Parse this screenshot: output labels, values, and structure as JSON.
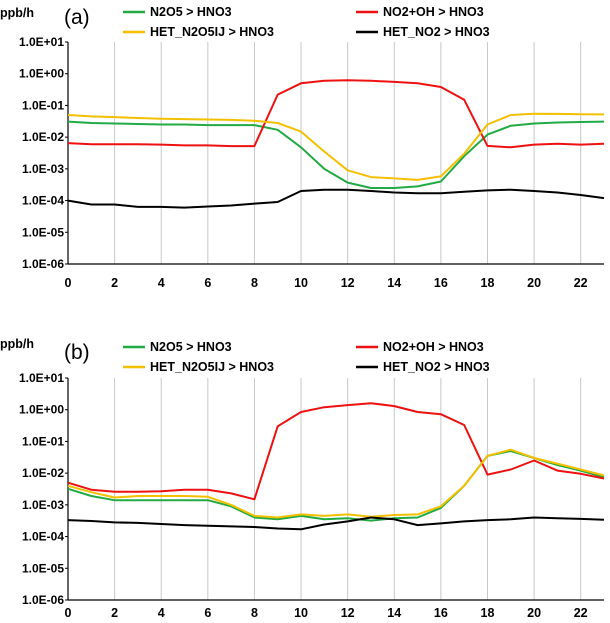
{
  "colors": {
    "N2O5 > HNO3": "#22aa44",
    "NO2+OH > HNO3": "#ee1111",
    "HET_N2O5IJ > HNO3": "#f2c000",
    "HET_NO2 > HNO3": "#000000",
    "grid": "#c8c8c8"
  },
  "chart_data": [
    {
      "type": "line",
      "panel_label": "(a)",
      "ylabel": "ppb/h",
      "yscale": "log",
      "ylim": [
        1e-06,
        10
      ],
      "y_tick_labels": [
        "1.0E+01",
        "1.0E+00",
        "1.0E-01",
        "1.0E-02",
        "1.0E-03",
        "1.0E-04",
        "1.0E-05",
        "1.0E-06"
      ],
      "x_tick_labels": [
        "0",
        "2",
        "4",
        "6",
        "8",
        "10",
        "12",
        "14",
        "16",
        "18",
        "20",
        "22"
      ],
      "xlim": [
        0,
        23
      ],
      "grid": "vertical",
      "legend_position": "top",
      "x": [
        0,
        1,
        2,
        3,
        4,
        5,
        6,
        7,
        8,
        9,
        10,
        11,
        12,
        13,
        14,
        15,
        16,
        17,
        18,
        19,
        20,
        21,
        22,
        23
      ],
      "series": [
        {
          "name": "N2O5 > HNO3",
          "values": [
            0.031,
            0.028,
            0.027,
            0.026,
            0.025,
            0.025,
            0.024,
            0.024,
            0.024,
            0.017,
            0.0048,
            0.001,
            0.00037,
            0.00025,
            0.00025,
            0.00028,
            0.0004,
            0.0025,
            0.012,
            0.023,
            0.027,
            0.029,
            0.03,
            0.031
          ]
        },
        {
          "name": "NO2+OH > HNO3",
          "values": [
            0.0065,
            0.006,
            0.006,
            0.006,
            0.0058,
            0.0055,
            0.0055,
            0.0052,
            0.0052,
            0.22,
            0.5,
            0.6,
            0.62,
            0.6,
            0.55,
            0.5,
            0.38,
            0.15,
            0.0053,
            0.0048,
            0.0058,
            0.0062,
            0.0058,
            0.0062
          ]
        },
        {
          "name": "HET_N2O5IJ > HNO3",
          "values": [
            0.05,
            0.045,
            0.043,
            0.04,
            0.038,
            0.037,
            0.036,
            0.035,
            0.033,
            0.028,
            0.015,
            0.0035,
            0.0009,
            0.00055,
            0.0005,
            0.00045,
            0.00058,
            0.003,
            0.025,
            0.05,
            0.055,
            0.054,
            0.053,
            0.052
          ]
        },
        {
          "name": "HET_NO2 > HNO3",
          "values": [
            0.0001,
            7.5e-05,
            7.5e-05,
            6.3e-05,
            6.3e-05,
            6e-05,
            6.5e-05,
            7e-05,
            8e-05,
            9e-05,
            0.0002,
            0.00022,
            0.00022,
            0.0002,
            0.00018,
            0.00017,
            0.00017,
            0.00019,
            0.00021,
            0.00022,
            0.0002,
            0.00018,
            0.00015,
            0.00012
          ]
        }
      ]
    },
    {
      "type": "line",
      "panel_label": "(b)",
      "ylabel": "ppb/h",
      "yscale": "log",
      "ylim": [
        1e-06,
        10
      ],
      "y_tick_labels": [
        "1.0E+01",
        "1.0E+00",
        "1.0E-01",
        "1.0E-02",
        "1.0E-03",
        "1.0E-04",
        "1.0E-05",
        "1.0E-06"
      ],
      "x_tick_labels": [
        "0",
        "2",
        "4",
        "6",
        "8",
        "10",
        "12",
        "14",
        "16",
        "18",
        "20",
        "22"
      ],
      "xlim": [
        0,
        23
      ],
      "grid": "vertical",
      "legend_position": "top",
      "x": [
        0,
        1,
        2,
        3,
        4,
        5,
        6,
        7,
        8,
        9,
        10,
        11,
        12,
        13,
        14,
        15,
        16,
        17,
        18,
        19,
        20,
        21,
        22,
        23
      ],
      "series": [
        {
          "name": "N2O5 > HNO3",
          "values": [
            0.0032,
            0.0019,
            0.0014,
            0.0014,
            0.0014,
            0.0014,
            0.0014,
            0.0009,
            0.0004,
            0.00035,
            0.00045,
            0.00035,
            0.00038,
            0.00032,
            0.00038,
            0.0004,
            0.0008,
            0.004,
            0.035,
            0.05,
            0.03,
            0.018,
            0.012,
            0.0075
          ]
        },
        {
          "name": "NO2+OH > HNO3",
          "values": [
            0.005,
            0.003,
            0.0026,
            0.0026,
            0.0027,
            0.003,
            0.003,
            0.0023,
            0.0015,
            0.3,
            0.85,
            1.2,
            1.4,
            1.6,
            1.3,
            0.85,
            0.72,
            0.33,
            0.009,
            0.013,
            0.025,
            0.012,
            0.0095,
            0.0068
          ]
        },
        {
          "name": "HET_N2O5IJ > HNO3",
          "values": [
            0.004,
            0.0025,
            0.0017,
            0.0019,
            0.0019,
            0.0019,
            0.0018,
            0.001,
            0.00045,
            0.0004,
            0.0005,
            0.00045,
            0.0005,
            0.00042,
            0.00048,
            0.0005,
            0.0009,
            0.004,
            0.035,
            0.055,
            0.03,
            0.02,
            0.013,
            0.0085
          ]
        },
        {
          "name": "HET_NO2 > HNO3",
          "values": [
            0.00033,
            0.00031,
            0.00028,
            0.00027,
            0.00025,
            0.00023,
            0.00022,
            0.00021,
            0.0002,
            0.00018,
            0.00017,
            0.00024,
            0.0003,
            0.0004,
            0.00035,
            0.00023,
            0.00026,
            0.0003,
            0.00033,
            0.00035,
            0.0004,
            0.00038,
            0.00036,
            0.00034
          ]
        }
      ]
    }
  ]
}
